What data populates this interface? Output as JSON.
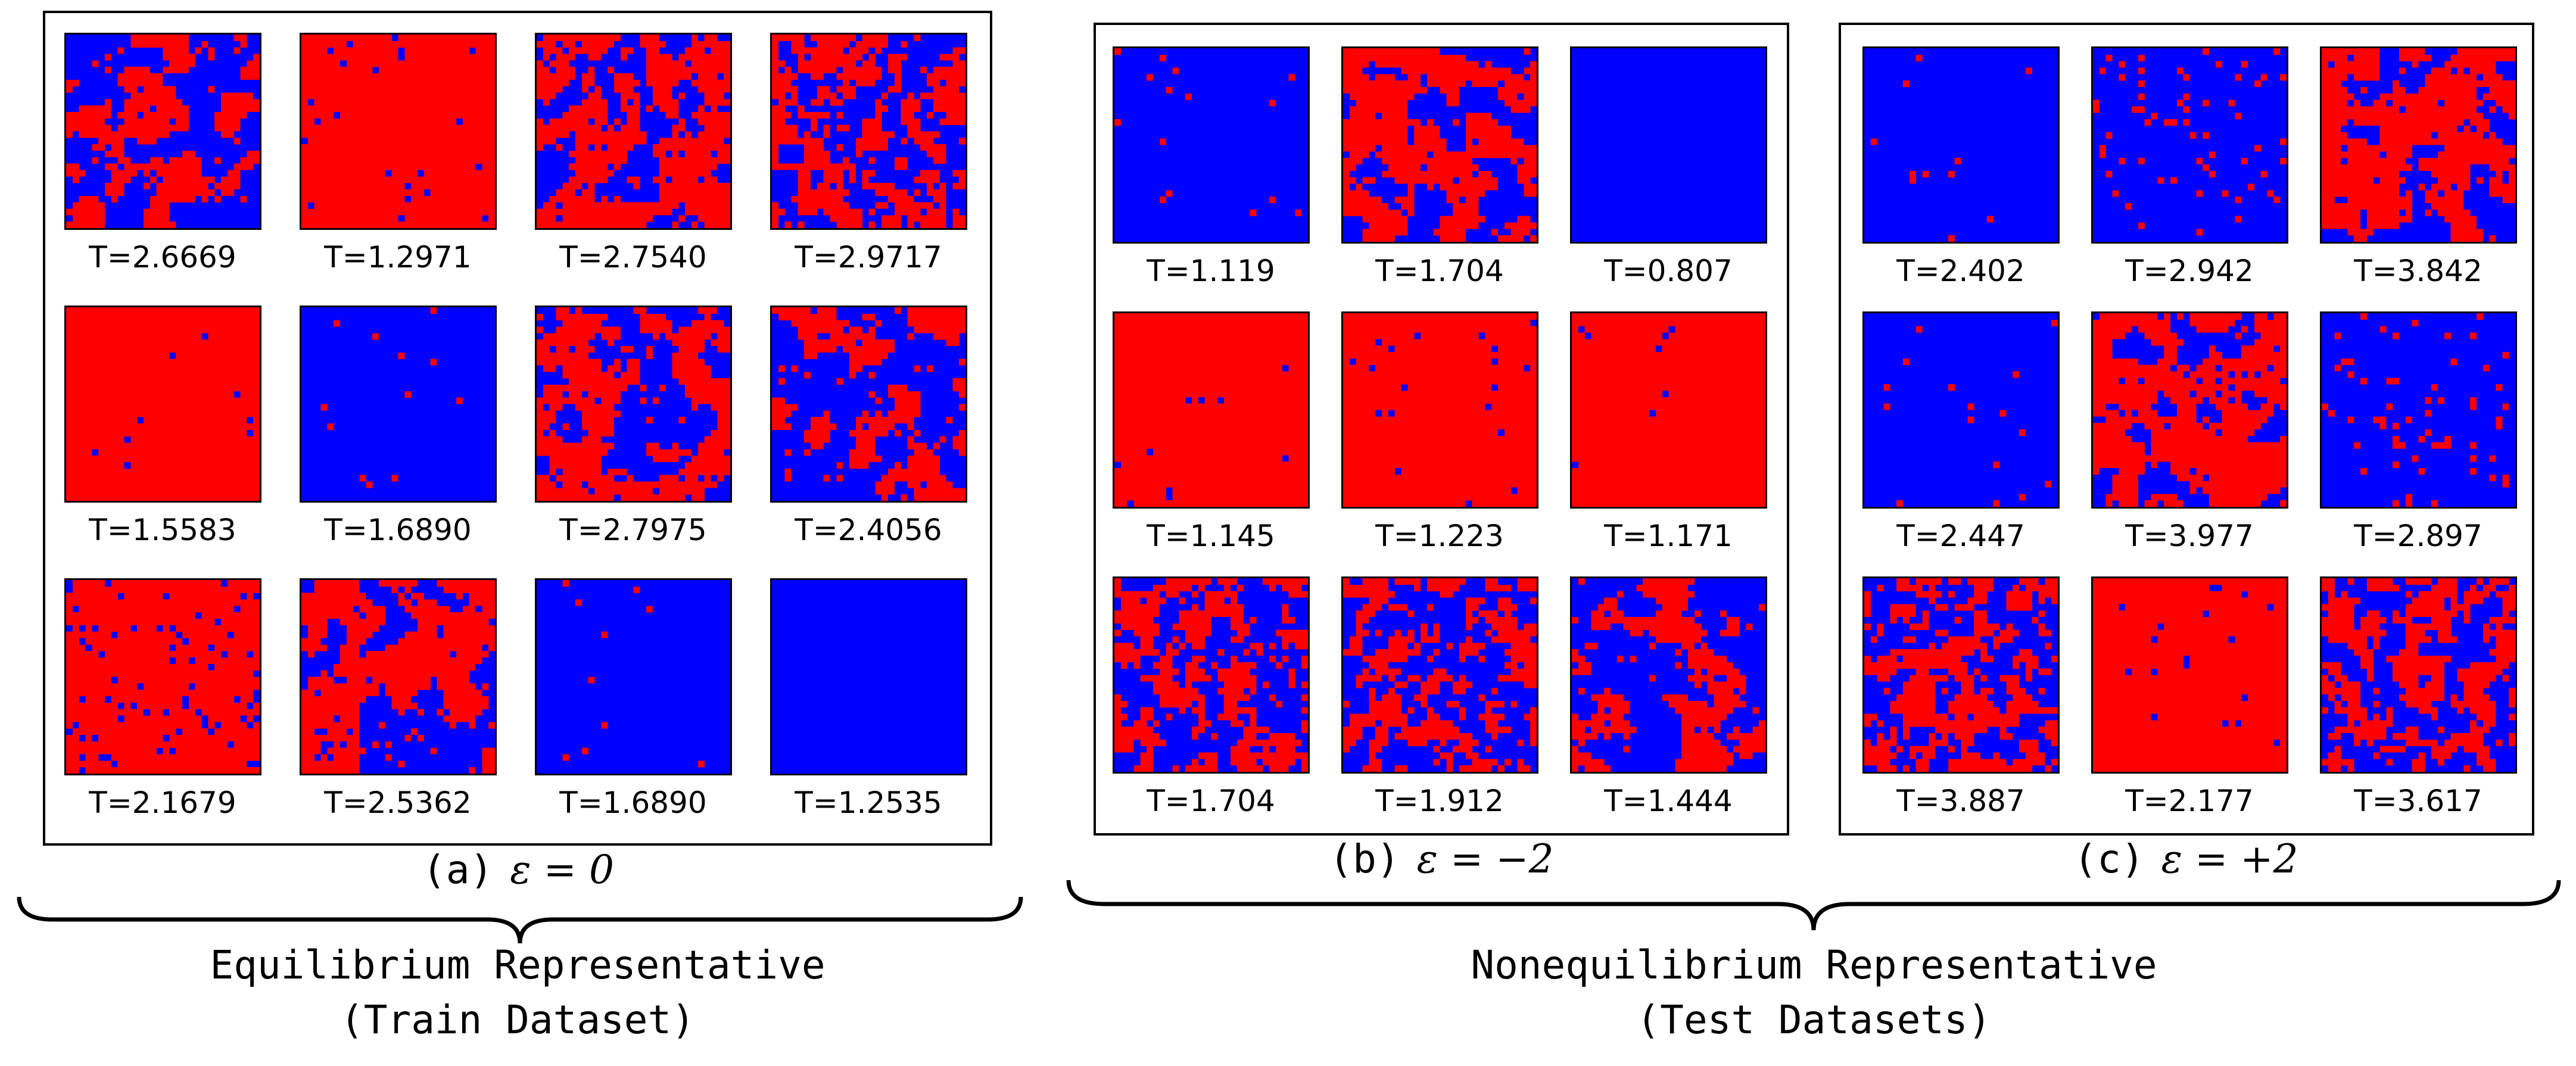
{
  "colors": {
    "spin_up": "#ff0000",
    "spin_down": "#0000ff",
    "frame": "#000000"
  },
  "panels": [
    {
      "id": "a",
      "caption_label": "(a)",
      "caption_epsilon": "ε = 0",
      "columns": 4,
      "tiles": [
        {
          "T": "T=2.6669",
          "pattern": "mixed-blue"
        },
        {
          "T": "T=1.2971",
          "pattern": "red"
        },
        {
          "T": "T=2.7540",
          "pattern": "mixed-red"
        },
        {
          "T": "T=2.9717",
          "pattern": "mixed-fine"
        },
        {
          "T": "T=1.5583",
          "pattern": "red"
        },
        {
          "T": "T=1.6890",
          "pattern": "blue"
        },
        {
          "T": "T=2.7975",
          "pattern": "mixed-red"
        },
        {
          "T": "T=2.4056",
          "pattern": "mixed-blue"
        },
        {
          "T": "T=2.1679",
          "pattern": "red-dotted"
        },
        {
          "T": "T=2.5362",
          "pattern": "mixed-red"
        },
        {
          "T": "T=1.6890",
          "pattern": "blue"
        },
        {
          "T": "T=1.2535",
          "pattern": "blue-pure"
        }
      ]
    },
    {
      "id": "b",
      "caption_label": "(b)",
      "caption_epsilon": "ε = −2",
      "columns": 3,
      "tiles": [
        {
          "T": "T=1.119",
          "pattern": "blue"
        },
        {
          "T": "T=1.704",
          "pattern": "mixed-red"
        },
        {
          "T": "T=0.807",
          "pattern": "blue-pure"
        },
        {
          "T": "T=1.145",
          "pattern": "red"
        },
        {
          "T": "T=1.223",
          "pattern": "red"
        },
        {
          "T": "T=1.171",
          "pattern": "red"
        },
        {
          "T": "T=1.704",
          "pattern": "mixed-fine"
        },
        {
          "T": "T=1.912",
          "pattern": "mixed-fine"
        },
        {
          "T": "T=1.444",
          "pattern": "mixed-blue"
        }
      ]
    },
    {
      "id": "c",
      "caption_label": "(c)",
      "caption_epsilon": "ε = +2",
      "columns": 3,
      "tiles": [
        {
          "T": "T=2.402",
          "pattern": "blue"
        },
        {
          "T": "T=2.942",
          "pattern": "blue-dotted"
        },
        {
          "T": "T=3.842",
          "pattern": "mixed-red"
        },
        {
          "T": "T=2.447",
          "pattern": "blue"
        },
        {
          "T": "T=3.977",
          "pattern": "mixed-red"
        },
        {
          "T": "T=2.897",
          "pattern": "blue-dotted"
        },
        {
          "T": "T=3.887",
          "pattern": "mixed-fine"
        },
        {
          "T": "T=2.177",
          "pattern": "red"
        },
        {
          "T": "T=3.617",
          "pattern": "mixed-fine"
        }
      ]
    }
  ],
  "groups": [
    {
      "line1": "Equilibrium Representative",
      "line2": "(Train Dataset)"
    },
    {
      "line1": "Nonequilibrium Representative",
      "line2": "(Test Datasets)"
    }
  ]
}
